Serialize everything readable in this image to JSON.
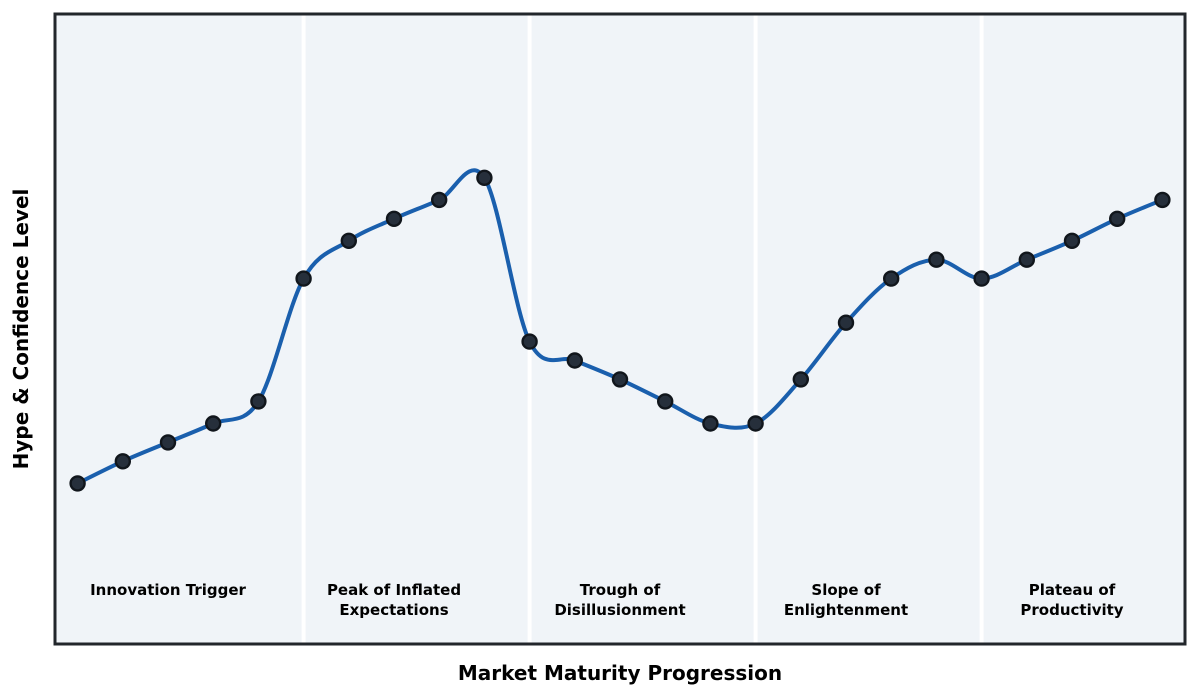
{
  "chart_data": {
    "type": "line",
    "title": "",
    "xlabel": "Market Maturity Progression",
    "ylabel": "Hype & Confidence Level",
    "x": [
      0,
      1,
      2,
      3,
      4,
      5,
      6,
      7,
      8,
      9,
      10,
      11,
      12,
      13,
      14,
      15,
      16,
      17,
      18,
      19,
      20,
      21,
      22,
      23,
      24
    ],
    "values": [
      25.5,
      29,
      32,
      35,
      38.5,
      58,
      64,
      67.5,
      70.5,
      74,
      48,
      45,
      42,
      38.5,
      35,
      35,
      42,
      51,
      58,
      61,
      58,
      61,
      64,
      67.5,
      70.5
    ],
    "xlim": [
      -0.5,
      24.5
    ],
    "ylim": [
      0,
      100
    ],
    "grid": false,
    "legend": null,
    "line_style": "smooth-spline",
    "marker": "circle",
    "phases": [
      {
        "label": "Innovation Trigger",
        "start": 0,
        "end": 4
      },
      {
        "label": "Peak of Inflated\nExpectations",
        "start": 5,
        "end": 9
      },
      {
        "label": "Trough of\nDisillusionment",
        "start": 10,
        "end": 14
      },
      {
        "label": "Slope of\nEnlightenment",
        "start": 15,
        "end": 19
      },
      {
        "label": "Plateau of\nProductivity",
        "start": 20,
        "end": 24
      }
    ],
    "dividers": [
      5,
      10,
      15,
      20
    ],
    "colors": {
      "line": "#1a5fad",
      "marker_fill": "#262f3b",
      "marker_edge": "#11161c",
      "plot_bg": "#f0f4f8",
      "divider": "#ffffff",
      "spine": "#22262b",
      "text": "#000000",
      "figure_bg": "#ffffff"
    }
  }
}
